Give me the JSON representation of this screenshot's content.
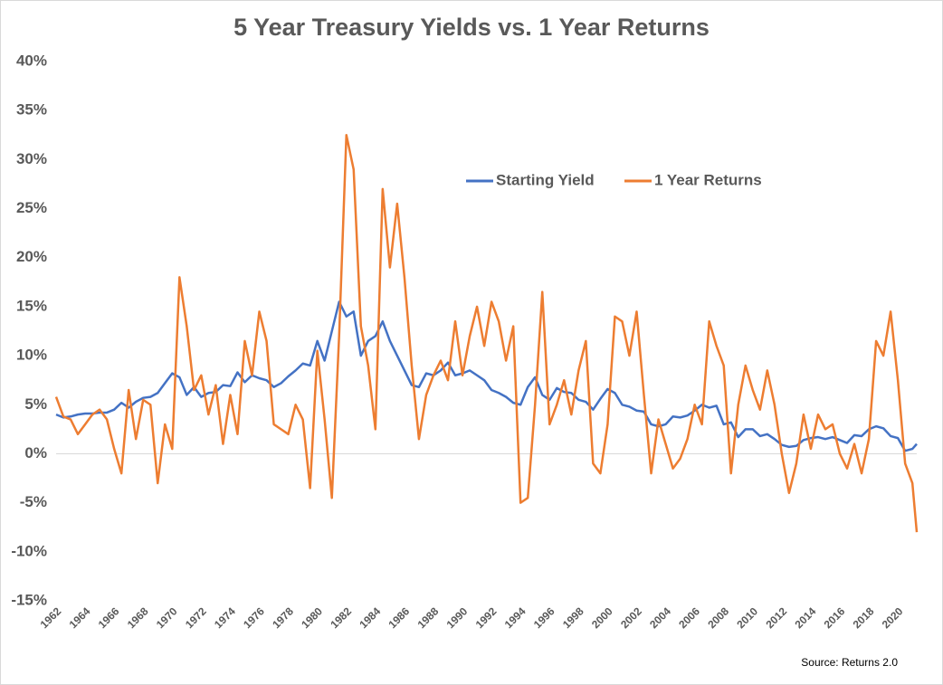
{
  "chart_data": {
    "type": "line",
    "title": "5 Year Treasury Yields vs. 1 Year Returns",
    "source": "Source: Returns 2.0",
    "x": [
      1962,
      1962.5,
      1963,
      1963.5,
      1964,
      1964.5,
      1965,
      1965.5,
      1966,
      1966.5,
      1967,
      1967.5,
      1968,
      1968.5,
      1969,
      1969.5,
      1970,
      1970.5,
      1971,
      1971.5,
      1972,
      1972.5,
      1973,
      1973.5,
      1974,
      1974.5,
      1975,
      1975.5,
      1976,
      1976.5,
      1977,
      1977.5,
      1978,
      1978.5,
      1979,
      1979.5,
      1980,
      1980.5,
      1981,
      1981.5,
      1982,
      1982.5,
      1983,
      1983.5,
      1984,
      1984.5,
      1985,
      1985.5,
      1986,
      1986.5,
      1987,
      1987.5,
      1988,
      1988.5,
      1989,
      1989.5,
      1990,
      1990.5,
      1991,
      1991.5,
      1992,
      1992.5,
      1993,
      1993.5,
      1994,
      1994.5,
      1995,
      1995.5,
      1996,
      1996.5,
      1997,
      1997.5,
      1998,
      1998.5,
      1999,
      1999.5,
      2000,
      2000.5,
      2001,
      2001.5,
      2002,
      2002.5,
      2003,
      2003.5,
      2004,
      2004.5,
      2005,
      2005.5,
      2006,
      2006.5,
      2007,
      2007.5,
      2008,
      2008.5,
      2009,
      2009.5,
      2010,
      2010.5,
      2011,
      2011.5,
      2012,
      2012.5,
      2013,
      2013.5,
      2014,
      2014.5,
      2015,
      2015.5,
      2016,
      2016.5,
      2017,
      2017.5,
      2018,
      2018.5,
      2019,
      2019.5,
      2020,
      2020.5,
      2021,
      2021.3
    ],
    "series": [
      {
        "name": "Starting Yield",
        "color": "#4472c4",
        "values": [
          4,
          3.7,
          3.8,
          4.0,
          4.1,
          4.1,
          4.2,
          4.2,
          4.5,
          5.2,
          4.7,
          5.3,
          5.7,
          5.8,
          6.2,
          7.2,
          8.2,
          7.8,
          6.0,
          6.8,
          5.8,
          6.2,
          6.3,
          7.0,
          6.9,
          8.3,
          7.3,
          8.0,
          7.7,
          7.5,
          6.8,
          7.2,
          7.9,
          8.5,
          9.2,
          9.0,
          11.5,
          9.5,
          12.5,
          15.5,
          14.0,
          14.5,
          10.0,
          11.5,
          12.0,
          13.5,
          11.5,
          10.0,
          8.5,
          7.0,
          6.8,
          8.2,
          8.0,
          8.5,
          9.3,
          8.0,
          8.2,
          8.5,
          8.0,
          7.5,
          6.5,
          6.2,
          5.8,
          5.2,
          5.0,
          6.8,
          7.8,
          6.0,
          5.5,
          6.7,
          6.3,
          6.2,
          5.5,
          5.3,
          4.5,
          5.6,
          6.6,
          6.2,
          5.0,
          4.8,
          4.4,
          4.3,
          3.0,
          2.8,
          3.0,
          3.8,
          3.7,
          3.9,
          4.4,
          5.0,
          4.7,
          4.9,
          3.0,
          3.2,
          1.7,
          2.5,
          2.5,
          1.8,
          2.0,
          1.5,
          0.9,
          0.7,
          0.8,
          1.4,
          1.6,
          1.7,
          1.5,
          1.7,
          1.4,
          1.1,
          1.9,
          1.8,
          2.5,
          2.8,
          2.6,
          1.8,
          1.6,
          0.3,
          0.5,
          1.0
        ]
      },
      {
        "name": "1 Year Returns",
        "color": "#ed7d31",
        "values": [
          5.8,
          3.8,
          3.5,
          2.0,
          3.0,
          4.0,
          4.5,
          3.5,
          0.5,
          -2.0,
          6.5,
          1.5,
          5.5,
          5.0,
          -3.0,
          3.0,
          0.5,
          18.0,
          13.0,
          6.5,
          8.0,
          4.0,
          7.0,
          1.0,
          6.0,
          2.0,
          11.5,
          8.0,
          14.5,
          11.5,
          3.0,
          2.5,
          2.0,
          5.0,
          3.5,
          -3.5,
          10.5,
          3.5,
          -4.5,
          12.0,
          32.5,
          29.0,
          13.0,
          9.0,
          2.5,
          27.0,
          19.0,
          25.5,
          18.0,
          9.0,
          1.5,
          6.0,
          8.0,
          9.5,
          7.5,
          13.5,
          8.0,
          12.0,
          15.0,
          11.0,
          15.5,
          13.5,
          9.5,
          13.0,
          -5.0,
          -4.5,
          5.0,
          16.5,
          3.0,
          5.0,
          7.5,
          4.0,
          8.5,
          11.5,
          -1.0,
          -2.0,
          3.0,
          14.0,
          13.5,
          10.0,
          14.5,
          6.0,
          -2.0,
          3.5,
          1.0,
          -1.5,
          -0.5,
          1.5,
          5.0,
          3.0,
          13.5,
          11.0,
          9.0,
          -2.0,
          5.0,
          9.0,
          6.5,
          4.5,
          8.5,
          5.0,
          0.0,
          -4.0,
          -1.0,
          4.0,
          0.5,
          4.0,
          2.5,
          3.0,
          0.0,
          -1.5,
          1.0,
          -2.0,
          1.5,
          11.5,
          10.0,
          14.5,
          7.5,
          -1.0,
          -3.0,
          -8.0
        ]
      }
    ],
    "xlim": [
      1962,
      2021.3
    ],
    "xticks": [
      1962,
      1964,
      1966,
      1968,
      1970,
      1972,
      1974,
      1976,
      1978,
      1980,
      1982,
      1984,
      1986,
      1988,
      1990,
      1992,
      1994,
      1996,
      1998,
      2000,
      2002,
      2004,
      2006,
      2008,
      2010,
      2012,
      2014,
      2016,
      2018,
      2020
    ],
    "ylim": [
      -15,
      40
    ],
    "yticks": [
      {
        "value": -15,
        "label": "-15%"
      },
      {
        "value": -10,
        "label": "-10%"
      },
      {
        "value": -5,
        "label": "-5%"
      },
      {
        "value": 0,
        "label": "0%"
      },
      {
        "value": 5,
        "label": "5%"
      },
      {
        "value": 10,
        "label": "10%"
      },
      {
        "value": 15,
        "label": "15%"
      },
      {
        "value": 20,
        "label": "20%"
      },
      {
        "value": 25,
        "label": "25%"
      },
      {
        "value": 30,
        "label": "30%"
      },
      {
        "value": 35,
        "label": "35%"
      },
      {
        "value": 40,
        "label": "40%"
      }
    ],
    "grid": false
  }
}
